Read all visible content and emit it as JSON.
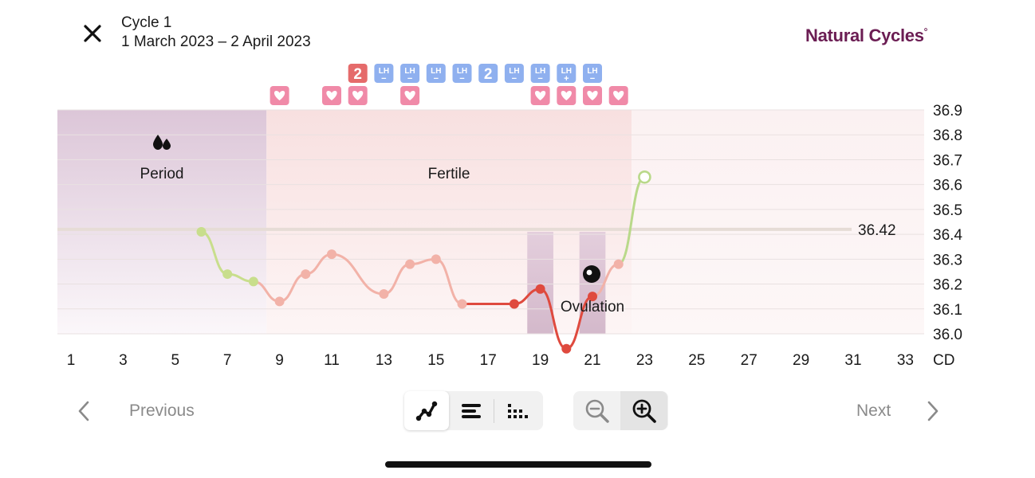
{
  "header": {
    "cycle_title": "Cycle 1",
    "cycle_dates": "1 March 2023 – 2 April 2023",
    "logo_text": "Natural Cycles",
    "logo_mark": "°"
  },
  "chart_data": {
    "type": "line",
    "xlabel": "CD",
    "x_ticks": [
      1,
      3,
      5,
      7,
      9,
      11,
      13,
      15,
      17,
      19,
      21,
      23,
      25,
      27,
      29,
      31,
      33
    ],
    "y_ticks": [
      "36.9",
      "36.8",
      "36.7",
      "36.6",
      "36.5",
      "36.4",
      "36.3",
      "36.2",
      "36.1",
      "36.0"
    ],
    "ylim": [
      36.0,
      36.9
    ],
    "xlim": [
      1,
      33
    ],
    "cover_line": {
      "value": 36.42,
      "label": "36.42"
    },
    "phases": [
      {
        "name": "period",
        "label": "Period",
        "from": 0.5,
        "to": 8.5
      },
      {
        "name": "fertile",
        "label": "Fertile",
        "from": 8.5,
        "to": 22.5
      },
      {
        "name": "ovulation",
        "label": "Ovulation",
        "from": 21.5,
        "to": 22.5
      }
    ],
    "points": [
      {
        "x": 6,
        "y": 36.41,
        "phase": "period"
      },
      {
        "x": 7,
        "y": 36.24,
        "phase": "period"
      },
      {
        "x": 8,
        "y": 36.21,
        "phase": "period"
      },
      {
        "x": 9,
        "y": 36.13,
        "phase": "fertile"
      },
      {
        "x": 10,
        "y": 36.24,
        "phase": "fertile"
      },
      {
        "x": 11,
        "y": 36.32,
        "phase": "fertile"
      },
      {
        "x": 13,
        "y": 36.16,
        "phase": "fertile"
      },
      {
        "x": 14,
        "y": 36.28,
        "phase": "fertile"
      },
      {
        "x": 15,
        "y": 36.3,
        "phase": "fertile"
      },
      {
        "x": 16,
        "y": 36.12,
        "phase": "fertile"
      },
      {
        "x": 18,
        "y": 36.12,
        "phase": "peak"
      },
      {
        "x": 19,
        "y": 36.18,
        "phase": "peak"
      },
      {
        "x": 20,
        "y": 35.94,
        "phase": "peak"
      },
      {
        "x": 21,
        "y": 36.15,
        "phase": "peak"
      },
      {
        "x": 22,
        "y": 36.28,
        "phase": "fertile"
      },
      {
        "x": 23,
        "y": 36.63,
        "phase": "open"
      }
    ],
    "markers_top": [
      {
        "day": 12,
        "type": "count",
        "label": "2",
        "color": "#e56b6b"
      },
      {
        "day": 13,
        "type": "lh",
        "label": "LH",
        "sign": "−"
      },
      {
        "day": 14,
        "type": "lh",
        "label": "LH",
        "sign": "−"
      },
      {
        "day": 15,
        "type": "lh",
        "label": "LH",
        "sign": "−"
      },
      {
        "day": 16,
        "type": "lh",
        "label": "LH",
        "sign": "−"
      },
      {
        "day": 17,
        "type": "count",
        "label": "2",
        "color": "#8fb0ef"
      },
      {
        "day": 18,
        "type": "lh",
        "label": "LH",
        "sign": "−"
      },
      {
        "day": 19,
        "type": "lh",
        "label": "LH",
        "sign": "−"
      },
      {
        "day": 20,
        "type": "lh",
        "label": "LH",
        "sign": "+"
      },
      {
        "day": 21,
        "type": "lh",
        "label": "LH",
        "sign": "−"
      }
    ],
    "markers_hearts": [
      9,
      11,
      12,
      14,
      19,
      20,
      21,
      22
    ],
    "colors": {
      "period_line": "#c8de8c",
      "fertile_line": "#f2b2a8",
      "peak_line": "#df4a3e",
      "open_point": "#b9d98a",
      "lh_badge": "#8fb0ef",
      "heart_badge": "#f08aa8",
      "cover_line": "#e6dcd6",
      "period_bg": "#e6d5e2",
      "fertile_bg": "#fbe7e7",
      "ovulation_bg": "#d7bed0"
    }
  },
  "controls": {
    "previous_label": "Previous",
    "next_label": "Next",
    "view_buttons": [
      "line-view",
      "bar-view",
      "dots-view"
    ],
    "active_view": "line-view",
    "zoom_buttons": [
      "zoom-out",
      "zoom-in"
    ],
    "active_zoom": "zoom-in"
  }
}
